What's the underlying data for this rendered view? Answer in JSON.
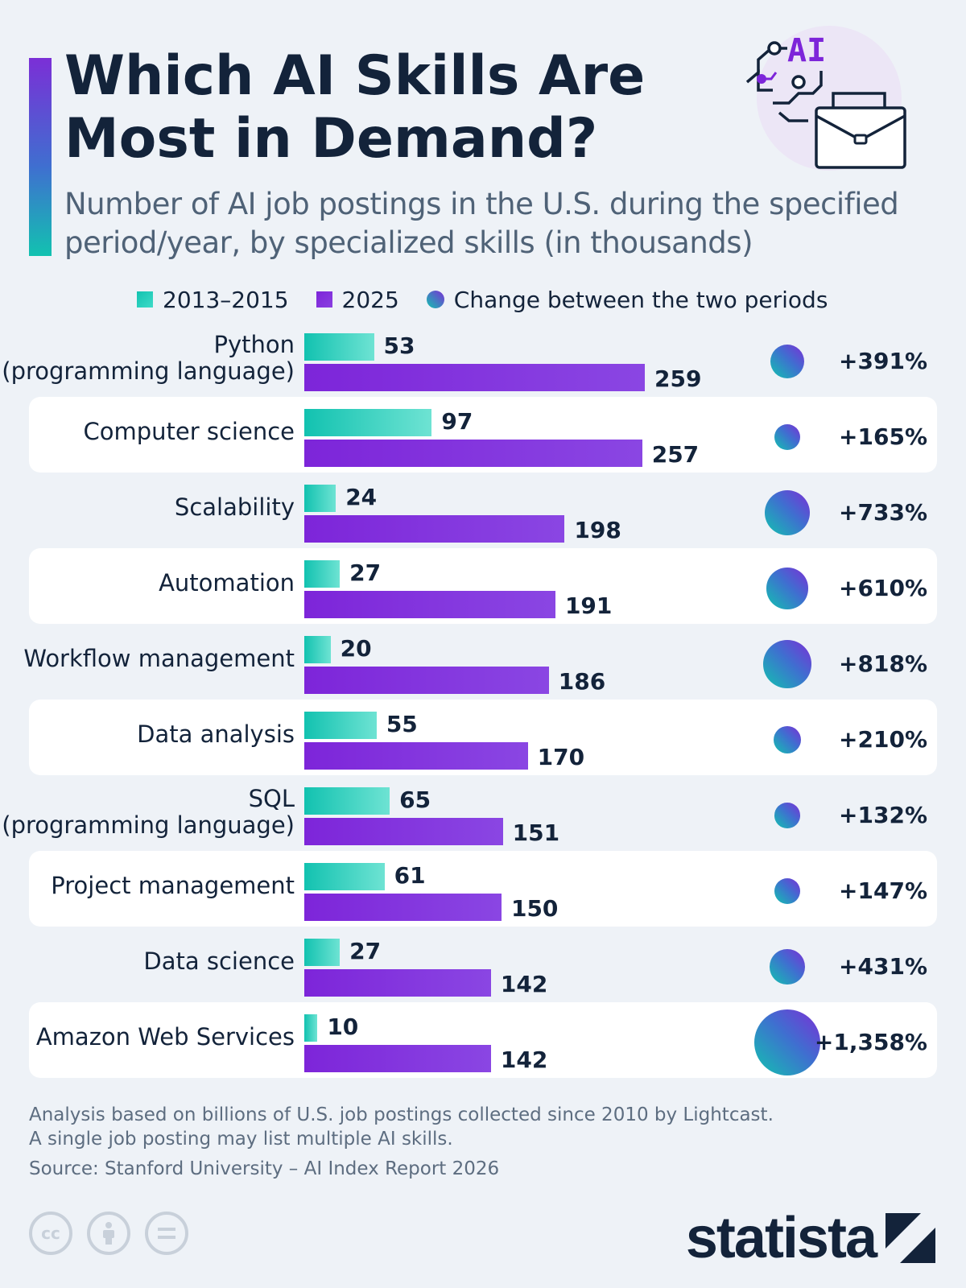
{
  "header": {
    "title": "Which AI Skills Are Most in Demand?",
    "subtitle": "Number of AI job postings in the U.S. during the specified period/year, by specialized skills (in thousands)",
    "hero_icon_text": "AI"
  },
  "legend": {
    "period_1": "2013–2015",
    "period_2": "2025",
    "change": "Change between the two periods"
  },
  "colors": {
    "period_1": "#12c2b0",
    "period_2": "#7d25d9",
    "text": "#13233a",
    "row_highlight": "#ffffff",
    "background": "#eef2f7"
  },
  "chart_data": {
    "type": "bar",
    "orientation": "horizontal",
    "categories": [
      "Python\n(programming language)",
      "Computer science",
      "Scalability",
      "Automation",
      "Workflow management",
      "Data analysis",
      "SQL\n(programming language)",
      "Project management",
      "Data science",
      "Amazon Web Services"
    ],
    "series": [
      {
        "name": "2013–2015",
        "values": [
          53,
          97,
          24,
          27,
          20,
          55,
          65,
          61,
          27,
          10
        ]
      },
      {
        "name": "2025",
        "values": [
          259,
          257,
          198,
          191,
          186,
          170,
          151,
          150,
          142,
          142
        ]
      }
    ],
    "change": {
      "name": "Change between the two periods",
      "values": [
        391,
        165,
        733,
        610,
        818,
        210,
        132,
        147,
        431,
        1358
      ],
      "labels": [
        "+391%",
        "+165%",
        "+733%",
        "+610%",
        "+818%",
        "+210%",
        "+132%",
        "+147%",
        "+431%",
        "+1,358%"
      ]
    },
    "xlim": [
      0,
      259
    ],
    "grid": false,
    "legend_position": "top"
  },
  "footer": {
    "note_line_1": "Analysis based on billions of U.S. job postings collected since 2010 by Lightcast.",
    "note_line_2": "A single job posting may list multiple AI skills.",
    "source": "Source: Stanford University – AI Index Report 2026",
    "brand": "statista",
    "license_icons": [
      "cc-icon",
      "attribution-icon",
      "no-derivatives-icon"
    ]
  }
}
